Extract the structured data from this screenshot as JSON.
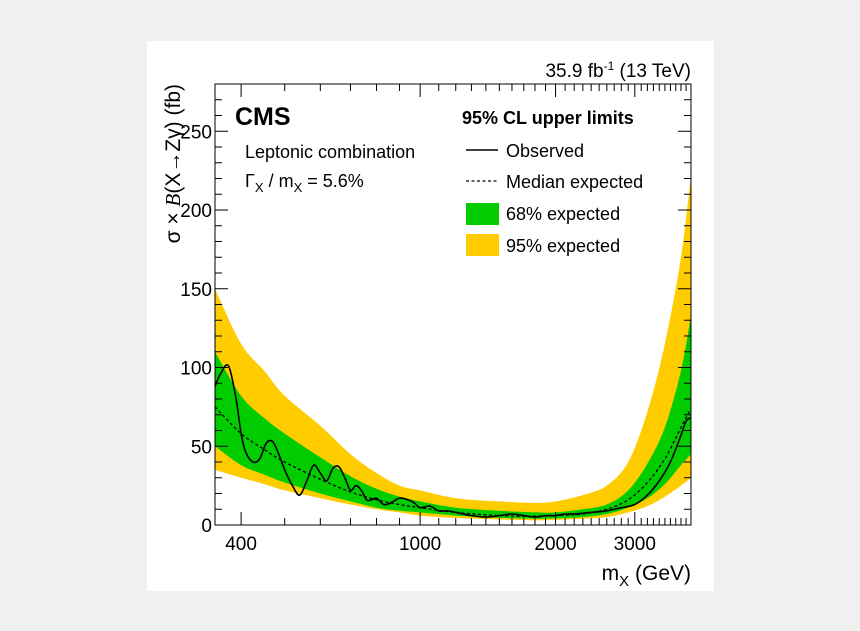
{
  "chart_data": {
    "type": "line",
    "header": {
      "lumi_prefix": "35.9 fb",
      "lumi_sup": "-1",
      "energy": " (13 TeV)"
    },
    "experiment": "CMS",
    "analysis_label": "Leptonic combination",
    "width_label": {
      "gamma": "Γ",
      "sub_x": "X",
      "mid": " / m",
      "sub_x2": "X",
      "value": " = 5.6%"
    },
    "xlabel": {
      "main": "m",
      "sub": "X",
      "unit": " (GeV)"
    },
    "ylabel": {
      "sigma": "σ × ",
      "B": "B",
      "process": "(X→Zγ)",
      "unit": " (fb)"
    },
    "xscale": "log",
    "xlim": [
      350,
      4000
    ],
    "ylim": [
      0,
      280
    ],
    "x_ticks": [
      {
        "value": 400,
        "label": "400"
      },
      {
        "value": 1000,
        "label": "1000"
      },
      {
        "value": 2000,
        "label": "2000"
      },
      {
        "value": 3000,
        "label": "3000"
      }
    ],
    "x_minor_ticks": [
      500,
      600,
      700,
      800,
      900,
      1100,
      1200,
      1300,
      1400,
      1500,
      1600,
      1700,
      1800,
      1900,
      2100,
      2200,
      2300,
      2400,
      2500,
      2600,
      2700,
      2800,
      2900,
      3100,
      3200,
      3300,
      3400,
      3500,
      3600,
      3700,
      3800,
      3900
    ],
    "y_ticks": [
      {
        "value": 0,
        "label": "0"
      },
      {
        "value": 50,
        "label": "50"
      },
      {
        "value": 100,
        "label": "100"
      },
      {
        "value": 150,
        "label": "150"
      },
      {
        "value": 200,
        "label": "200"
      },
      {
        "value": 250,
        "label": "250"
      }
    ],
    "legend": {
      "title": "95% CL upper limits",
      "placement": "top-right",
      "entries": [
        {
          "label": "Observed",
          "style": "solid"
        },
        {
          "label": "Median expected",
          "style": "dashed"
        },
        {
          "label": "68% expected",
          "style": "fill",
          "color": "#00cc00"
        },
        {
          "label": "95% expected",
          "style": "fill",
          "color": "#ffcc00"
        }
      ]
    },
    "colors": {
      "band95": "#ffcc00",
      "band68": "#00cc00",
      "line": "#000000"
    },
    "x": [
      350,
      400,
      450,
      500,
      600,
      700,
      800,
      900,
      1000,
      1200,
      1500,
      1800,
      2000,
      2300,
      2600,
      2900,
      3200,
      3500,
      3800,
      4000
    ],
    "expected": [
      75,
      58,
      48,
      40,
      29,
      21,
      16,
      13,
      11,
      8,
      6,
      5.5,
      6,
      7,
      10,
      16,
      27,
      42,
      62,
      74
    ],
    "band68_low": [
      50,
      38,
      32,
      27,
      20,
      15,
      11,
      9,
      8,
      6,
      4.5,
      4,
      4.2,
      5,
      7,
      11,
      17,
      26,
      38,
      45
    ],
    "band68_high": [
      110,
      82,
      68,
      58,
      43,
      31,
      23,
      18,
      15,
      11,
      9,
      8,
      8,
      10,
      13,
      22,
      39,
      62,
      98,
      133
    ],
    "band95_low": [
      35,
      30,
      26,
      22,
      17,
      13,
      10,
      8,
      6,
      4.5,
      3.5,
      3,
      3.2,
      4,
      5,
      8,
      12,
      18,
      25,
      30
    ],
    "band95_high": [
      150,
      115,
      98,
      82,
      63,
      45,
      33,
      25,
      22,
      17,
      15,
      14,
      15,
      19,
      25,
      40,
      72,
      115,
      170,
      222
    ],
    "observed": {
      "x": [
        350,
        360,
        375,
        390,
        400,
        410,
        425,
        440,
        455,
        470,
        485,
        500,
        520,
        540,
        560,
        580,
        600,
        620,
        640,
        660,
        680,
        700,
        720,
        740,
        760,
        780,
        800,
        830,
        860,
        900,
        940,
        970,
        1000,
        1050,
        1100,
        1150,
        1200,
        1300,
        1400,
        1500,
        1600,
        1700,
        1800,
        1900,
        2000,
        2100,
        2200,
        2400,
        2600,
        2800,
        3000,
        3200,
        3400,
        3600,
        3800,
        3900,
        4000
      ],
      "y": [
        88,
        96,
        101,
        80,
        58,
        46,
        40,
        42,
        52,
        53,
        45,
        35,
        25,
        19,
        28,
        38,
        33,
        28,
        36,
        37,
        30,
        22,
        25,
        22,
        16,
        16,
        17,
        13,
        14,
        17,
        16,
        14,
        11,
        12,
        9,
        9,
        8,
        6,
        5,
        6,
        7,
        6,
        5,
        6,
        6,
        7,
        7,
        8,
        9,
        11,
        13,
        19,
        28,
        40,
        57,
        66,
        68
      ]
    }
  }
}
